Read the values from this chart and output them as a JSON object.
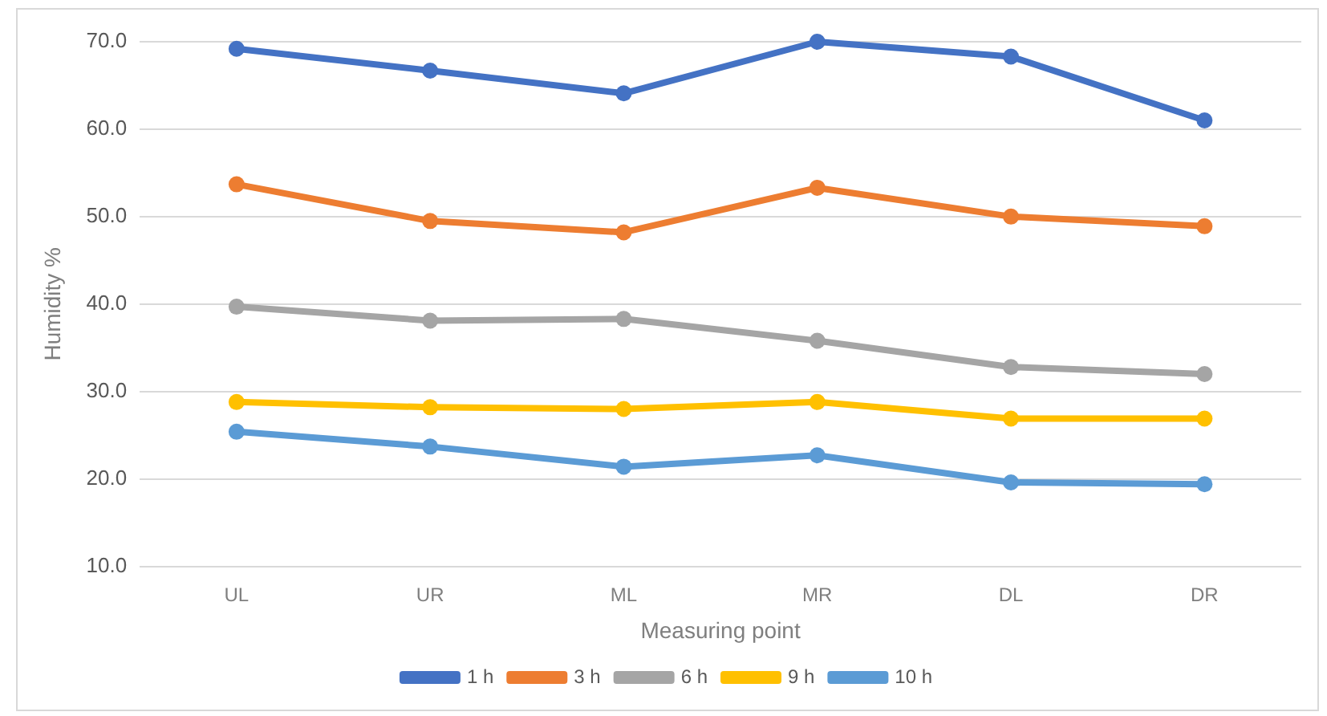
{
  "chart_data": {
    "type": "line",
    "xlabel": "Measuring point",
    "ylabel": "Humidity %",
    "categories": [
      "UL",
      "UR",
      "ML",
      "MR",
      "DL",
      "DR"
    ],
    "series": [
      {
        "name": "1 h",
        "color": "#4472c4",
        "values": [
          69.2,
          66.7,
          64.1,
          70.0,
          68.3,
          61.0
        ]
      },
      {
        "name": "3 h",
        "color": "#ed7d31",
        "values": [
          53.7,
          49.5,
          48.2,
          53.3,
          50.0,
          48.9
        ]
      },
      {
        "name": "6 h",
        "color": "#a5a5a5",
        "values": [
          39.7,
          38.1,
          38.3,
          35.8,
          32.8,
          32.0
        ]
      },
      {
        "name": "9 h",
        "color": "#ffc000",
        "values": [
          28.8,
          28.2,
          28.0,
          28.8,
          26.9,
          26.9
        ]
      },
      {
        "name": "10 h",
        "color": "#5b9bd5",
        "values": [
          25.4,
          23.7,
          21.4,
          22.7,
          19.6,
          19.4
        ]
      }
    ],
    "ylim": [
      10,
      70
    ],
    "yticks": [
      {
        "value": 10,
        "label": "10.0"
      },
      {
        "value": 20,
        "label": "20.0"
      },
      {
        "value": 30,
        "label": "30.0"
      },
      {
        "value": 40,
        "label": "40.0"
      },
      {
        "value": 50,
        "label": "50.0"
      },
      {
        "value": 60,
        "label": "60.0"
      },
      {
        "value": 70,
        "label": "70.0"
      }
    ],
    "grid": "y",
    "legend": "bottom",
    "marker": "circle",
    "line_style": "solid"
  }
}
